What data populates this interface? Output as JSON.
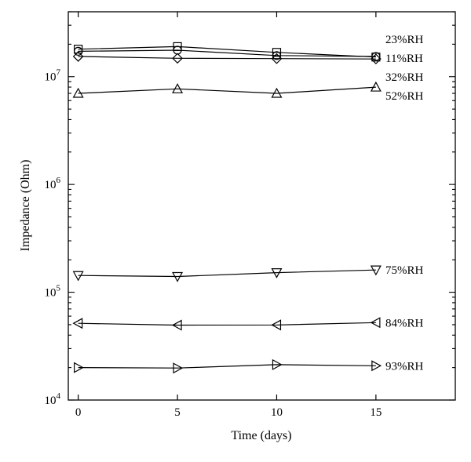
{
  "chart_data": {
    "type": "line",
    "xlabel": "Time (days)",
    "ylabel": "Impedance (Ohm)",
    "xlim": [
      -0.5,
      19
    ],
    "ylim": [
      10000,
      40000000
    ],
    "yscale": "log",
    "x_ticks": [
      0,
      5,
      10,
      15
    ],
    "y_ticks": [
      {
        "value": 10000,
        "base": "10",
        "exp": "4"
      },
      {
        "value": 100000,
        "base": "10",
        "exp": "5"
      },
      {
        "value": 1000000,
        "base": "10",
        "exp": "6"
      },
      {
        "value": 10000000,
        "base": "10",
        "exp": "7"
      }
    ],
    "grid": false,
    "legend": "direct labels at right end of each series",
    "x": [
      0,
      5,
      10,
      15
    ],
    "series": [
      {
        "name": "11%RH",
        "marker": "square",
        "values": [
          18000000,
          19000000,
          16800000,
          15200000
        ]
      },
      {
        "name": "23%RH",
        "marker": "circle",
        "values": [
          17200000,
          17600000,
          15700000,
          15400000
        ]
      },
      {
        "name": "32%RH",
        "marker": "diamond",
        "values": [
          15400000,
          14800000,
          14700000,
          14600000
        ]
      },
      {
        "name": "52%RH",
        "marker": "triangle-up",
        "values": [
          7000000,
          7700000,
          7000000,
          8000000
        ]
      },
      {
        "name": "75%RH",
        "marker": "triangle-down",
        "values": [
          143000,
          140000,
          152000,
          161000
        ]
      },
      {
        "name": "84%RH",
        "marker": "triangle-left",
        "values": [
          51500,
          49500,
          49700,
          52300
        ]
      },
      {
        "name": "93%RH",
        "marker": "triangle-right",
        "values": [
          20000,
          19800,
          21300,
          20800
        ]
      }
    ]
  }
}
